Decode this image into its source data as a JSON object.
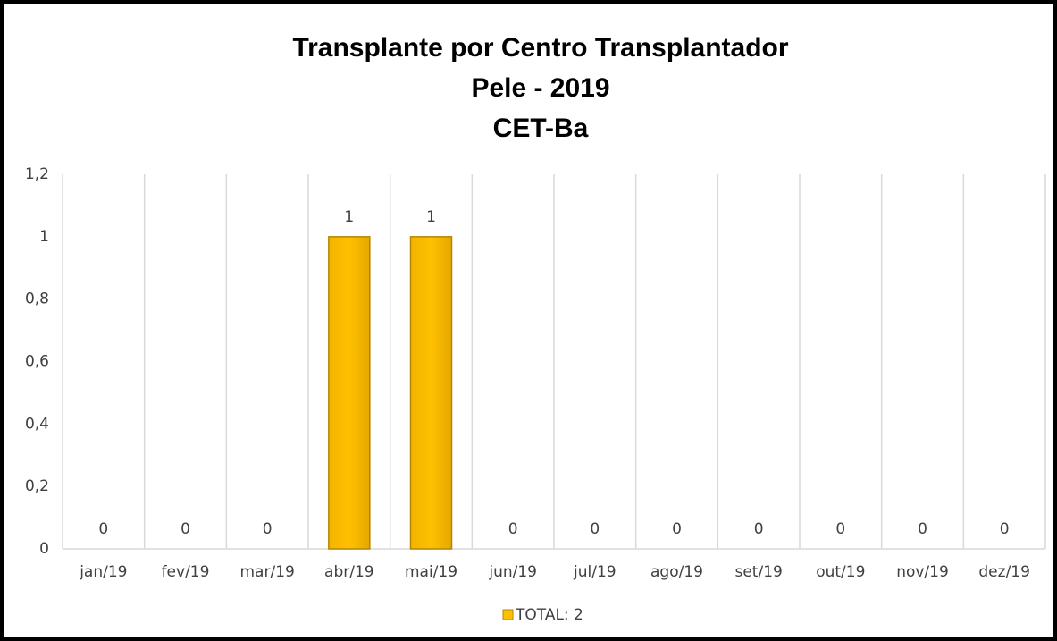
{
  "chart_data": {
    "type": "bar",
    "title": [
      "Transplante por Centro Transplantador",
      "Pele - 2019",
      "CET-Ba"
    ],
    "categories": [
      "jan/19",
      "fev/19",
      "mar/19",
      "abr/19",
      "mai/19",
      "jun/19",
      "jul/19",
      "ago/19",
      "set/19",
      "out/19",
      "nov/19",
      "dez/19"
    ],
    "series": [
      {
        "name": "TOTAL: 2",
        "color": "#FFC000",
        "values": [
          0,
          0,
          0,
          1,
          1,
          0,
          0,
          0,
          0,
          0,
          0,
          0
        ]
      }
    ],
    "ylim": [
      0,
      1.2
    ],
    "yticks": [
      0,
      {
        "value": 0.2,
        "label": "0,2"
      },
      {
        "value": 0.4,
        "label": "0,4"
      },
      {
        "value": 0.6,
        "label": "0,6"
      },
      {
        "value": 0.8,
        "label": "0,8"
      },
      1,
      {
        "value": 1.2,
        "label": "1,2"
      }
    ],
    "legend": "bottom"
  }
}
